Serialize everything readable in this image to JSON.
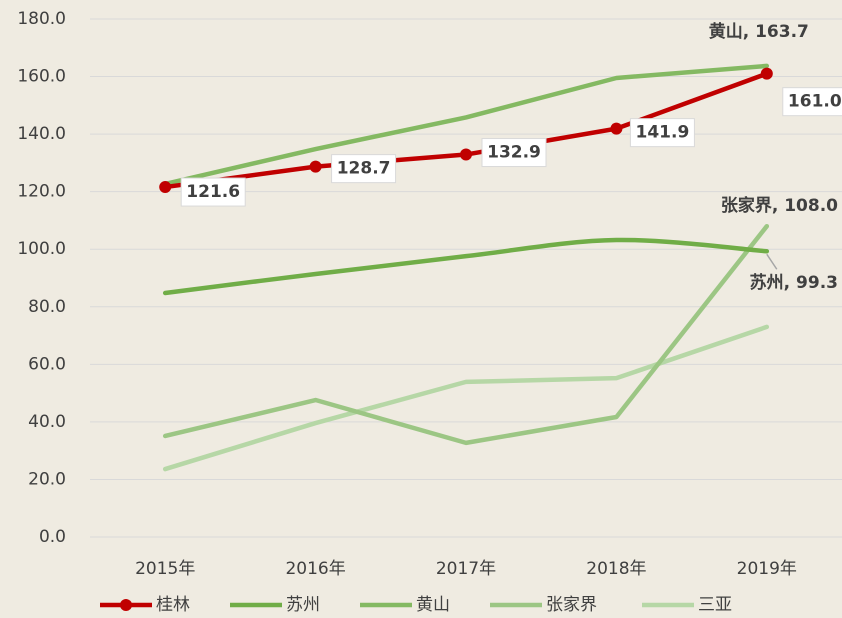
{
  "chart_data": {
    "type": "line",
    "categories": [
      "2015年",
      "2016年",
      "2017年",
      "2018年",
      "2019年"
    ],
    "series": [
      {
        "name": "桂林",
        "color": "#c00000",
        "markers": true,
        "values": [
          121.6,
          128.7,
          132.9,
          141.9,
          161.0
        ],
        "value_labels": [
          "121.6",
          "128.7",
          "132.9",
          "141.9",
          "161.0"
        ]
      },
      {
        "name": "苏州",
        "color": "#70ad47",
        "smooth": true,
        "values": [
          84.8,
          91.4,
          97.6,
          103.2,
          99.3
        ],
        "value_labels": [
          null,
          null,
          null,
          null,
          "苏州, 99.3"
        ]
      },
      {
        "name": "黄山",
        "color": "#84b962",
        "values": [
          122.7,
          134.8,
          145.8,
          159.5,
          163.7
        ],
        "value_labels": [
          null,
          null,
          null,
          null,
          "黄山, 163.7"
        ]
      },
      {
        "name": "张家界",
        "color": "#9cc684",
        "values": [
          35.1,
          47.6,
          32.7,
          41.7,
          108.0
        ],
        "value_labels": [
          null,
          null,
          null,
          null,
          "张家界, 108.0"
        ]
      },
      {
        "name": "三亚",
        "color": "#b6d7a6",
        "values": [
          23.6,
          39.6,
          53.9,
          55.2,
          73.0
        ]
      }
    ],
    "ylim": [
      0,
      180
    ],
    "yticks": [
      {
        "value": 0,
        "label": "0.0"
      },
      {
        "value": 20,
        "label": "20.0"
      },
      {
        "value": 40,
        "label": "40.0"
      },
      {
        "value": 60,
        "label": "60.0"
      },
      {
        "value": 80,
        "label": "80.0"
      },
      {
        "value": 100,
        "label": "100.0"
      },
      {
        "value": 120,
        "label": "120.0"
      },
      {
        "value": 140,
        "label": "140.0"
      },
      {
        "value": 160,
        "label": "160.0"
      },
      {
        "value": 180,
        "label": "180.0"
      }
    ],
    "grid": true,
    "legend": "bottom"
  }
}
